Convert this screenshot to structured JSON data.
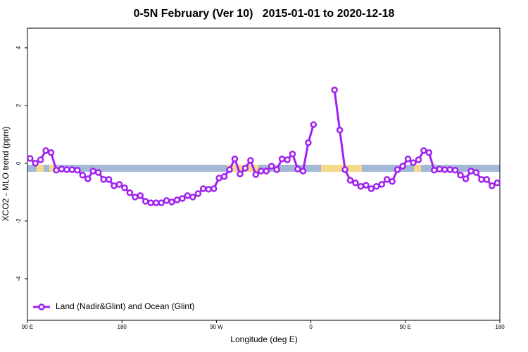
{
  "chart_data": {
    "type": "line",
    "title": "0-5N February (Ver 10)   2015-01-01 to 2020-12-18",
    "x_label": "Longitude (deg E)",
    "y_label": "XCO2 - MLO trend (ppm)",
    "xlim": [
      90,
      540
    ],
    "ylim": [
      -5.44,
      4.68
    ],
    "xticks": [
      {
        "value": 90,
        "label": "90 E"
      },
      180,
      {
        "value": 270,
        "label": "90 W"
      },
      {
        "value": 360,
        "label": "0"
      },
      {
        "value": 450,
        "label": "90 E"
      },
      {
        "value": 540,
        "label": "180"
      }
    ],
    "yticks": [
      4,
      2,
      0,
      -2,
      -4
    ],
    "grid": false,
    "legend": "bottomleft",
    "x": [
      92.5,
      97.5,
      102.5,
      107.5,
      112.5,
      117.5,
      122.5,
      127.5,
      132.5,
      137.5,
      142.5,
      147.5,
      152.5,
      157.5,
      162.5,
      167.5,
      172.5,
      177.5,
      182.5,
      187.5,
      192.5,
      197.5,
      202.5,
      207.5,
      212.5,
      217.5,
      222.5,
      227.5,
      232.5,
      237.5,
      242.5,
      247.5,
      252.5,
      257.5,
      262.5,
      267.5,
      272.5,
      277.5,
      282.5,
      287.5,
      292.5,
      297.5,
      302.5,
      307.5,
      312.5,
      317.5,
      322.5,
      327.5,
      332.5,
      337.5,
      342.5,
      347.5,
      352.5,
      357.5,
      362.5,
      367.5,
      372.5,
      377.5,
      382.5,
      387.5,
      392.5,
      397.5,
      402.5,
      407.5,
      412.5,
      417.5,
      422.5,
      427.5,
      432.5,
      437.5,
      442.5,
      447.5,
      452.5,
      457.5,
      462.5,
      467.5,
      472.5,
      477.5,
      482.5,
      487.5,
      492.5,
      497.5,
      502.5,
      507.5,
      512.5,
      517.5,
      522.5,
      527.5,
      532.5,
      537.5
    ],
    "series": [
      {
        "name": "Land (Nadir&Glint) and Ocean (Glint)",
        "color": "#a020f0",
        "values": [
          0.17,
          0,
          0.12,
          0.44,
          0.37,
          -0.24,
          -0.2,
          -0.22,
          -0.22,
          -0.24,
          -0.41,
          -0.54,
          -0.27,
          -0.32,
          -0.56,
          -0.56,
          -0.78,
          -0.73,
          -0.85,
          -1.02,
          -1.17,
          -1.12,
          -1.32,
          -1.37,
          -1.37,
          -1.37,
          -1.29,
          -1.34,
          -1.27,
          -1.22,
          -1.12,
          -1.17,
          -1.05,
          -0.88,
          -0.9,
          -0.88,
          -0.51,
          -0.46,
          -0.22,
          0.15,
          -0.37,
          -0.17,
          0.1,
          -0.39,
          -0.27,
          -0.27,
          -0.1,
          -0.22,
          0.15,
          0.12,
          0.32,
          -0.2,
          -0.27,
          0.71,
          1.34,
          null,
          null,
          null,
          2.54,
          1.15,
          -0.22,
          -0.59,
          -0.68,
          -0.8,
          -0.76,
          -0.88,
          -0.8,
          -0.73,
          -0.56,
          -0.63,
          -0.22,
          -0.1,
          0.15,
          0.02,
          0.12,
          0.44,
          0.37,
          -0.24,
          -0.2,
          -0.22,
          -0.22,
          -0.24,
          -0.41,
          -0.54,
          -0.27,
          -0.32,
          -0.56,
          -0.56,
          -0.78,
          -0.68
        ]
      }
    ]
  }
}
